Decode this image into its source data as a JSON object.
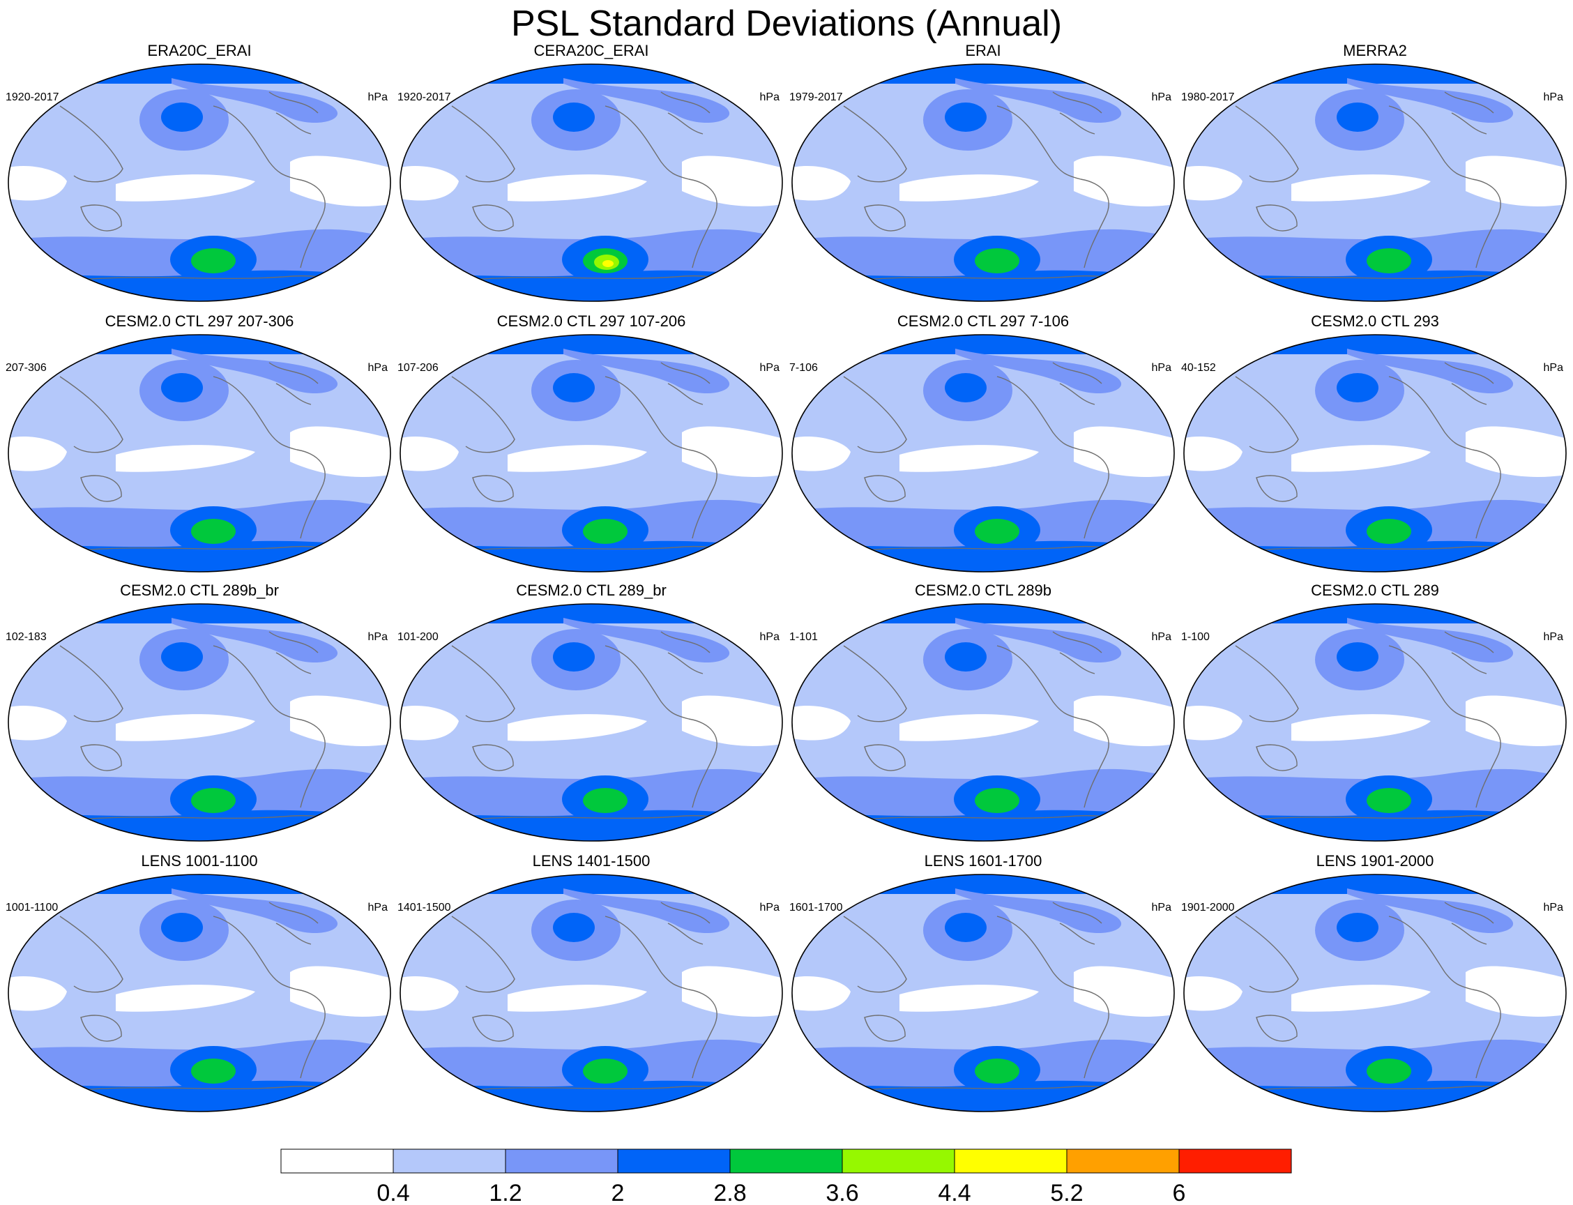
{
  "title": "PSL Standard Deviations (Annual)",
  "units": "hPa",
  "panels": [
    {
      "name": "ERA20C_ERAI",
      "period": "1920-2017",
      "anomaly": 3
    },
    {
      "name": "CERA20C_ERAI",
      "period": "1920-2017",
      "anomaly": 5
    },
    {
      "name": "ERAI",
      "period": "1979-2017",
      "anomaly": 3
    },
    {
      "name": "MERRA2",
      "period": "1980-2017",
      "anomaly": 3
    },
    {
      "name": "CESM2.0 CTL 297 207-306",
      "period": "207-306",
      "anomaly": 3
    },
    {
      "name": "CESM2.0 CTL 297 107-206",
      "period": "107-206",
      "anomaly": 3
    },
    {
      "name": "CESM2.0 CTL 297 7-106",
      "period": "7-106",
      "anomaly": 3
    },
    {
      "name": "CESM2.0 CTL 293",
      "period": "40-152",
      "anomaly": 3
    },
    {
      "name": "CESM2.0 CTL 289b_br",
      "period": "102-183",
      "anomaly": 3
    },
    {
      "name": "CESM2.0 CTL 289_br",
      "period": "101-200",
      "anomaly": 3
    },
    {
      "name": "CESM2.0 CTL 289b",
      "period": "1-101",
      "anomaly": 3
    },
    {
      "name": "CESM2.0 CTL 289",
      "period": "1-100",
      "anomaly": 3
    },
    {
      "name": "LENS 1001-1100",
      "period": "1001-1100",
      "anomaly": 3
    },
    {
      "name": "LENS 1401-1500",
      "period": "1401-1500",
      "anomaly": 3
    },
    {
      "name": "LENS 1601-1700",
      "period": "1601-1700",
      "anomaly": 3
    },
    {
      "name": "LENS 1901-2000",
      "period": "1901-2000",
      "anomaly": 3
    }
  ],
  "colorbar": {
    "colors": [
      "#ffffff",
      "#b4c8fa",
      "#7896f8",
      "#0064f8",
      "#00c83c",
      "#96f800",
      "#ffff00",
      "#ffa000",
      "#ff1e00"
    ],
    "labels": [
      "0.4",
      "1.2",
      "2",
      "2.8",
      "3.6",
      "4.4",
      "5.2",
      "6"
    ]
  }
}
